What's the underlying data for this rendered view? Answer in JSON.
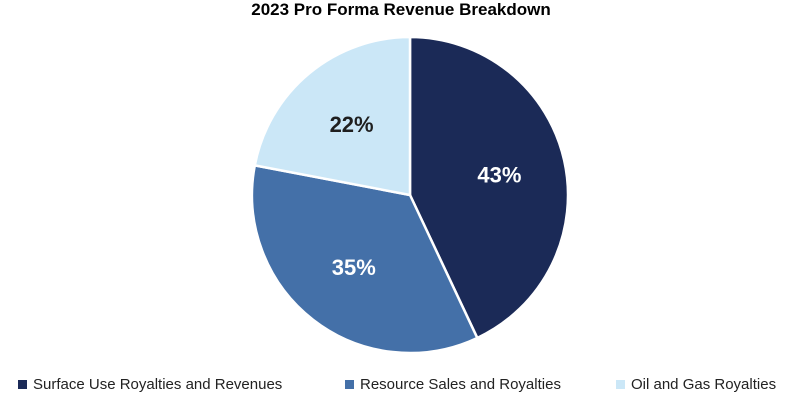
{
  "chart_data": {
    "type": "pie",
    "title": "2023 Pro Forma Revenue Breakdown",
    "slices": [
      {
        "label": "Surface Use Royalties and Revenues",
        "value": 43,
        "display": "43%",
        "color": "#1b2a57"
      },
      {
        "label": "Resource Sales and Royalties",
        "value": 35,
        "display": "35%",
        "color": "#4470a8"
      },
      {
        "label": "Oil and Gas Royalties",
        "value": 22,
        "display": "22%",
        "color": "#cbe7f7"
      }
    ],
    "legend_position": "bottom"
  }
}
